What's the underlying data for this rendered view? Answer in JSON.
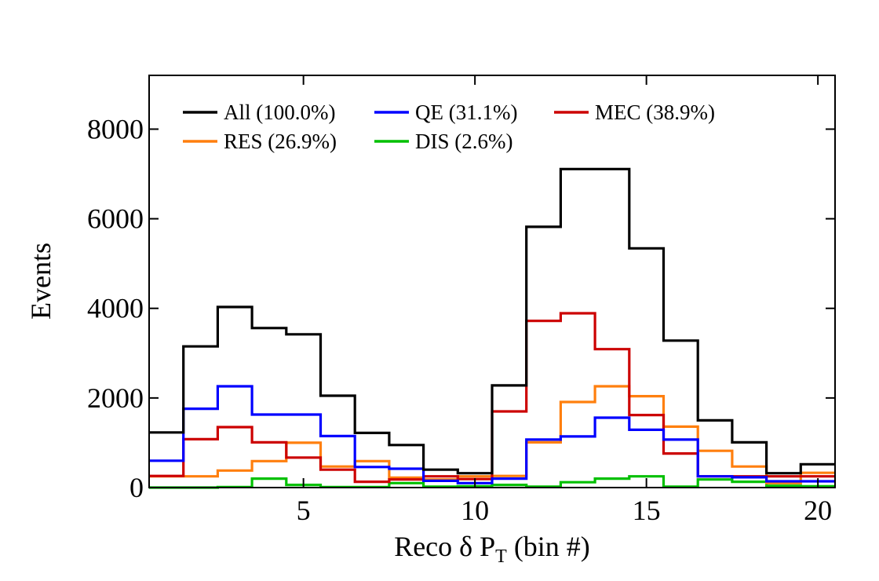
{
  "chart_data": {
    "type": "histogram-step",
    "xlabel": "Reco δ P",
    "xlabel_sub": "T",
    "xlabel_suffix": " (bin #)",
    "ylabel": "Events",
    "xlim": [
      0.5,
      20.5
    ],
    "ylim": [
      0,
      9200
    ],
    "xticks": [
      5,
      10,
      15,
      20
    ],
    "yticks": [
      0,
      2000,
      4000,
      6000,
      8000
    ],
    "legend_position": "top-left",
    "grid": false,
    "bins": [
      1,
      2,
      3,
      4,
      5,
      6,
      7,
      8,
      9,
      10,
      11,
      12,
      13,
      14,
      15,
      16,
      17,
      18,
      19,
      20
    ],
    "series": [
      {
        "name": "All (100.0%)",
        "color": "#000000",
        "values": [
          1230,
          3150,
          4030,
          3560,
          3420,
          2050,
          1220,
          950,
          400,
          320,
          2280,
          5820,
          7110,
          7110,
          5340,
          3280,
          1500,
          1010,
          320,
          520
        ]
      },
      {
        "name": "QE (31.1%)",
        "color": "#0000ff",
        "values": [
          600,
          1760,
          2260,
          1630,
          1630,
          1150,
          460,
          420,
          150,
          100,
          200,
          1070,
          1140,
          1560,
          1290,
          1070,
          250,
          230,
          140,
          140
        ]
      },
      {
        "name": "MEC (38.9%)",
        "color": "#cc0000",
        "values": [
          260,
          1080,
          1350,
          1010,
          670,
          400,
          130,
          180,
          250,
          190,
          1700,
          3720,
          3890,
          3090,
          1620,
          760,
          250,
          250,
          250,
          250
        ]
      },
      {
        "name": "RES (26.9%)",
        "color": "#ff7f0e",
        "values": [
          250,
          250,
          380,
          590,
          1000,
          470,
          590,
          220,
          180,
          250,
          260,
          1010,
          1910,
          2260,
          2040,
          1360,
          820,
          470,
          100,
          330
        ]
      },
      {
        "name": "DIS (2.6%)",
        "color": "#00c000",
        "values": [
          0,
          0,
          10,
          200,
          60,
          10,
          10,
          100,
          20,
          30,
          60,
          20,
          120,
          200,
          250,
          20,
          180,
          130,
          40,
          30
        ]
      }
    ]
  }
}
